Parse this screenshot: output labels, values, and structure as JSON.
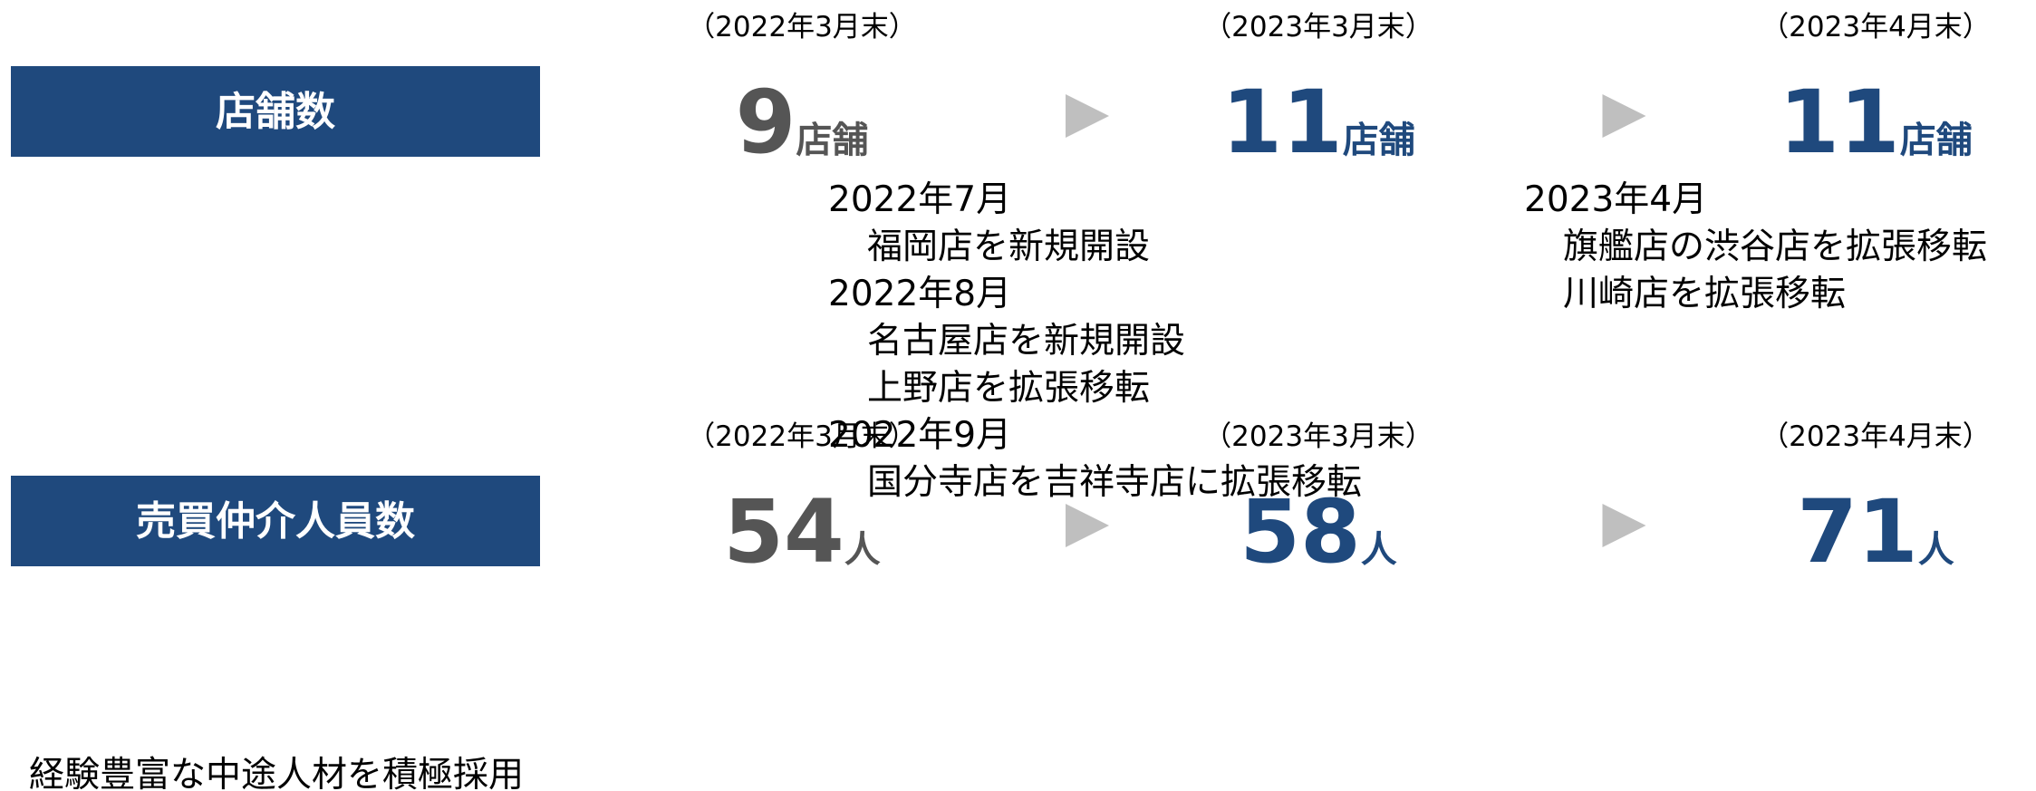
{
  "sections": [
    {
      "label": "店舗数",
      "periods": [
        {
          "date": "（2022年3月末）",
          "value": 9,
          "unit": "店舗"
        },
        {
          "date": "（2023年3月末）",
          "value": 11,
          "unit": "店舗",
          "changes": [
            {
              "month": "2022年7月",
              "items": [
                "福岡店を新規開設"
              ]
            },
            {
              "month": "2022年8月",
              "items": [
                "名古屋店を新規開設",
                "上野店を拡張移転"
              ]
            },
            {
              "month": "2022年9月",
              "items": [
                "国分寺店を吉祥寺店に拡張移転"
              ]
            }
          ]
        },
        {
          "date": "（2023年4月末）",
          "value": 11,
          "unit": "店舗",
          "changes": [
            {
              "month": "2023年4月",
              "items": [
                "旗艦店の渋谷店を拡張移転",
                "川崎店を拡張移転"
              ]
            }
          ]
        }
      ]
    },
    {
      "label": "売買仲介人員数",
      "note": "経験豊富な中途人材を積極採用",
      "periods": [
        {
          "date": "（2022年3月末）",
          "value": 54,
          "unit": "人"
        },
        {
          "date": "（2023年3月末）",
          "value": 58,
          "unit": "人"
        },
        {
          "date": "（2023年4月末）",
          "value": 71,
          "unit": "人"
        }
      ]
    }
  ]
}
